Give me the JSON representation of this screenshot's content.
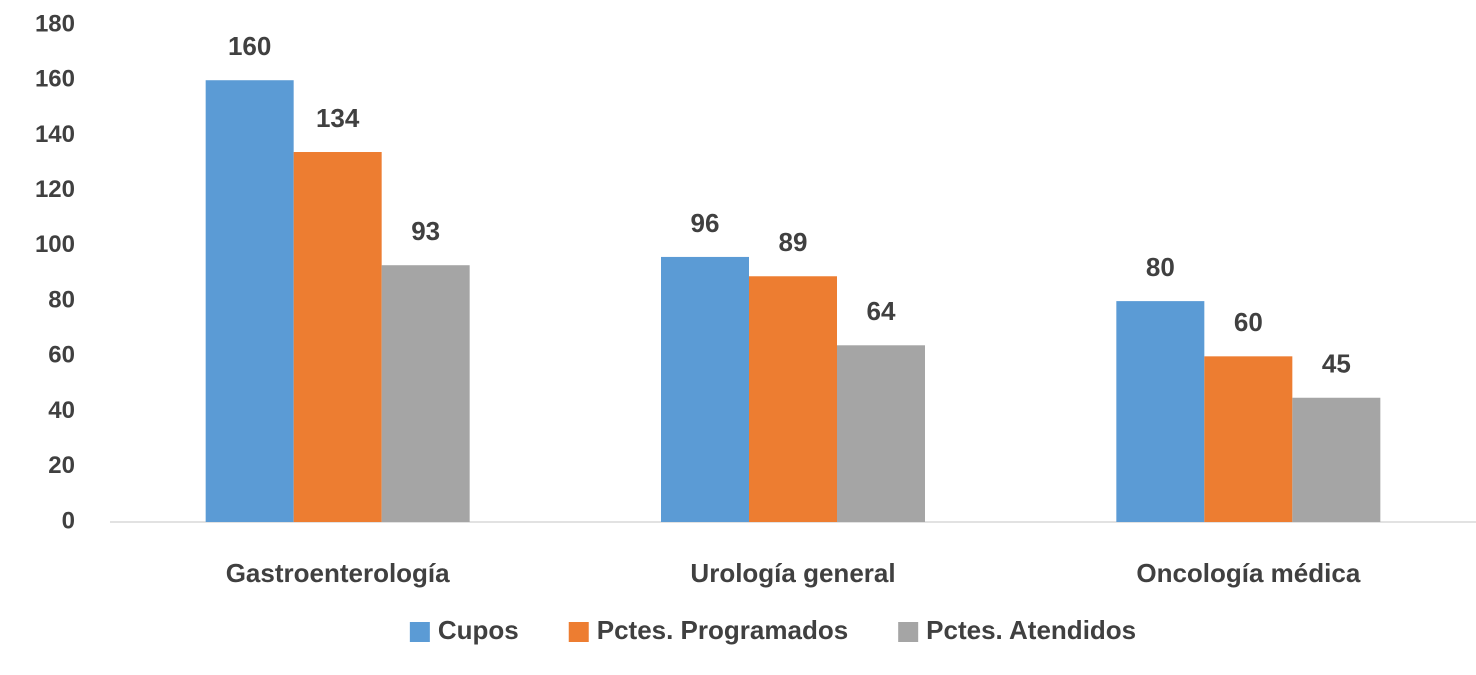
{
  "chart_data": {
    "type": "bar",
    "categories": [
      "Gastroenterología",
      "Urología general",
      "Oncología médica"
    ],
    "series": [
      {
        "name": "Cupos",
        "color": "#5b9bd5",
        "values": [
          160,
          96,
          80
        ]
      },
      {
        "name": "Pctes. Programados",
        "color": "#ed7d31",
        "values": [
          134,
          89,
          60
        ]
      },
      {
        "name": "Pctes. Atendidos",
        "color": "#a5a5a5",
        "values": [
          93,
          64,
          45
        ]
      }
    ],
    "ylim": [
      0,
      180
    ],
    "yticks": [
      0,
      20,
      40,
      60,
      80,
      100,
      120,
      140,
      160,
      180
    ],
    "grid": false,
    "legend": "bottom"
  }
}
